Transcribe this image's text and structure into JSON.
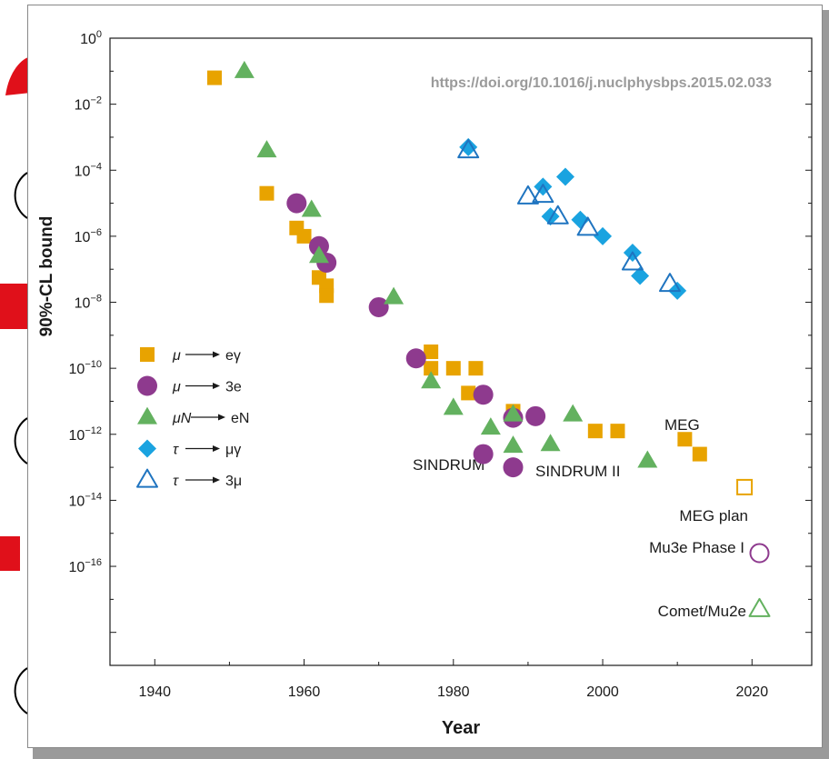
{
  "colors": {
    "mu_e_gamma": "#e8a300",
    "mu_3e": "#8e3a8e",
    "muN_eN": "#63b15f",
    "tau_mu_gamma": "#1aa3e0",
    "tau_3mu": "#1f74c0",
    "axis": "#1a1a1a",
    "background_slide_red": "#e0101a"
  },
  "chart_data": {
    "type": "scatter",
    "title": "",
    "xlabel": "Year",
    "ylabel": "90%-CL bound",
    "y_scale": "log",
    "xlim": [
      1934,
      2028
    ],
    "ylim_exponent": [
      -19,
      0
    ],
    "x_ticks": [
      {
        "value": 1940,
        "label": "1940"
      },
      {
        "value": 1960,
        "label": "1960"
      },
      {
        "value": 1980,
        "label": "1980"
      },
      {
        "value": 2000,
        "label": "2000"
      },
      {
        "value": 2020,
        "label": "2020"
      }
    ],
    "y_ticks": [
      {
        "exp": 0,
        "base": "10",
        "sup": "0"
      },
      {
        "exp": -2,
        "base": "10",
        "sup": "−2"
      },
      {
        "exp": -4,
        "base": "10",
        "sup": "−4"
      },
      {
        "exp": -6,
        "base": "10",
        "sup": "−6"
      },
      {
        "exp": -8,
        "base": "10",
        "sup": "−8"
      },
      {
        "exp": -10,
        "base": "10",
        "sup": "−10"
      },
      {
        "exp": -12,
        "base": "10",
        "sup": "−12"
      },
      {
        "exp": -14,
        "base": "10",
        "sup": "−14"
      },
      {
        "exp": -16,
        "base": "10",
        "sup": "−16"
      }
    ],
    "grid": false,
    "legend_position": "middle-left",
    "series": [
      {
        "name": "μ → eγ",
        "legend_left": "μ",
        "legend_right": "eγ",
        "marker": "square",
        "filled": true,
        "color_key": "mu_e_gamma",
        "points": [
          [
            1948,
            -1.2
          ],
          [
            1955,
            -4.7
          ],
          [
            1959,
            -5.75
          ],
          [
            1960,
            -6.0
          ],
          [
            1962,
            -7.25
          ],
          [
            1963,
            -7.5
          ],
          [
            1963,
            -7.8
          ],
          [
            1977,
            -9.5
          ],
          [
            1977,
            -10.0
          ],
          [
            1980,
            -10.0
          ],
          [
            1982,
            -10.75
          ],
          [
            1983,
            -10.0
          ],
          [
            1988,
            -11.3
          ],
          [
            1999,
            -11.9
          ],
          [
            2002,
            -11.9
          ],
          [
            2011,
            -12.15
          ],
          [
            2013,
            -12.6
          ]
        ]
      },
      {
        "name": "μ → 3e",
        "legend_left": "μ",
        "legend_right": "3e",
        "marker": "circle",
        "filled": true,
        "color_key": "mu_3e",
        "points": [
          [
            1959,
            -5.0
          ],
          [
            1962,
            -6.3
          ],
          [
            1963,
            -6.8
          ],
          [
            1970,
            -8.15
          ],
          [
            1975,
            -9.7
          ],
          [
            1984,
            -10.8
          ],
          [
            1984,
            -12.6
          ],
          [
            1988,
            -11.5
          ],
          [
            1988,
            -13.0
          ],
          [
            1991,
            -11.45
          ]
        ]
      },
      {
        "name": "μN → eN",
        "legend_left": "μN",
        "legend_right": "eN",
        "marker": "triangle",
        "filled": true,
        "color_key": "muN_eN",
        "points": [
          [
            1952,
            -1.0
          ],
          [
            1955,
            -3.4
          ],
          [
            1961,
            -5.2
          ],
          [
            1962,
            -6.6
          ],
          [
            1972,
            -7.85
          ],
          [
            1977,
            -10.4
          ],
          [
            1980,
            -11.2
          ],
          [
            1985,
            -11.8
          ],
          [
            1988,
            -11.4
          ],
          [
            1988,
            -12.35
          ],
          [
            1993,
            -12.3
          ],
          [
            1996,
            -11.4
          ],
          [
            2006,
            -12.8
          ]
        ]
      },
      {
        "name": "τ → μγ",
        "legend_left": "τ",
        "legend_right": "μγ",
        "marker": "diamond",
        "filled": true,
        "color_key": "tau_mu_gamma",
        "points": [
          [
            1982,
            -3.3
          ],
          [
            1992,
            -4.5
          ],
          [
            1993,
            -5.4
          ],
          [
            1995,
            -4.2
          ],
          [
            1997,
            -5.5
          ],
          [
            2000,
            -6.0
          ],
          [
            2004,
            -6.5
          ],
          [
            2005,
            -7.2
          ],
          [
            2010,
            -7.65
          ]
        ]
      },
      {
        "name": "τ → 3μ",
        "legend_left": "τ",
        "legend_right": "3μ",
        "marker": "triangle",
        "filled": false,
        "color_key": "tau_3mu",
        "points": [
          [
            1982,
            -3.4
          ],
          [
            1990,
            -4.8
          ],
          [
            1992,
            -4.75
          ],
          [
            1994,
            -5.4
          ],
          [
            1998,
            -5.75
          ],
          [
            2004,
            -6.8
          ],
          [
            2009,
            -7.45
          ]
        ]
      }
    ],
    "projections": [
      {
        "label": "MEG plan",
        "marker": "square",
        "year": 2019,
        "exp": -13.6,
        "color_key": "mu_e_gamma"
      },
      {
        "label": "Mu3e Phase I",
        "marker": "circle",
        "year": 2021,
        "exp": -15.6,
        "color_key": "mu_3e"
      },
      {
        "label": "Comet/Mu2e",
        "marker": "triangle",
        "year": 2021,
        "exp": -17.3,
        "color_key": "muN_eN"
      }
    ],
    "annotations": [
      {
        "text": "https://doi.org/10.1016/j.nuclphysbps.2015.02.033",
        "kind": "doi"
      },
      {
        "text": "SINDRUM",
        "kind": "experiment"
      },
      {
        "text": "SINDRUM II",
        "kind": "experiment"
      },
      {
        "text": "MEG",
        "kind": "experiment"
      }
    ]
  }
}
